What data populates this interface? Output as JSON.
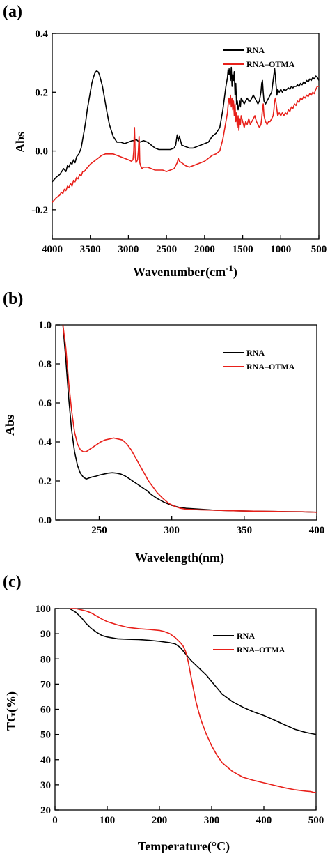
{
  "colors": {
    "rna": "#000000",
    "rna_otma": "#e8201a"
  },
  "chart_data": [
    {
      "panel": "(a)",
      "type": "line",
      "xlabel": "Wavenumber(cm",
      "xlabel_sup": "-1",
      "xlabel_close": ")",
      "ylabel": "Abs",
      "xlim": [
        4000,
        500
      ],
      "ylim": [
        -0.3,
        0.4
      ],
      "xticks": [
        4000,
        3500,
        3000,
        2500,
        2000,
        1500,
        1000,
        500
      ],
      "yticks": [
        -0.2,
        0.0,
        0.2,
        0.4
      ],
      "ytick_labels": [
        "-0.2",
        "0.0",
        "0.2",
        "0.4"
      ],
      "legend_position": "top-right",
      "series": [
        {
          "name": "RNA",
          "color_key": "rna",
          "x": [
            4000,
            3950,
            3900,
            3850,
            3820,
            3800,
            3780,
            3760,
            3740,
            3720,
            3700,
            3680,
            3650,
            3620,
            3600,
            3580,
            3560,
            3540,
            3520,
            3500,
            3480,
            3460,
            3440,
            3420,
            3400,
            3380,
            3360,
            3340,
            3320,
            3300,
            3280,
            3250,
            3200,
            3150,
            3100,
            3050,
            3000,
            2950,
            2920,
            2900,
            2880,
            2850,
            2800,
            2750,
            2700,
            2650,
            2600,
            2550,
            2500,
            2450,
            2400,
            2380,
            2360,
            2345,
            2330,
            2300,
            2250,
            2200,
            2150,
            2100,
            2050,
            2000,
            1950,
            1900,
            1850,
            1800,
            1780,
            1760,
            1740,
            1720,
            1700,
            1690,
            1680,
            1670,
            1660,
            1650,
            1640,
            1630,
            1620,
            1610,
            1600,
            1590,
            1580,
            1570,
            1560,
            1550,
            1540,
            1530,
            1520,
            1500,
            1480,
            1460,
            1440,
            1420,
            1400,
            1380,
            1360,
            1340,
            1320,
            1300,
            1280,
            1260,
            1250,
            1240,
            1230,
            1220,
            1200,
            1180,
            1160,
            1140,
            1120,
            1100,
            1090,
            1080,
            1070,
            1060,
            1050,
            1040,
            1020,
            1000,
            980,
            960,
            940,
            920,
            900,
            880,
            860,
            840,
            820,
            800,
            780,
            760,
            740,
            720,
            700,
            680,
            660,
            640,
            620,
            600,
            580,
            560,
            540,
            520,
            500
          ],
          "y": [
            -0.105,
            -0.09,
            -0.08,
            -0.06,
            -0.07,
            -0.05,
            -0.055,
            -0.04,
            -0.045,
            -0.03,
            -0.04,
            -0.02,
            -0.01,
            0.01,
            0.04,
            0.07,
            0.1,
            0.14,
            0.17,
            0.2,
            0.23,
            0.25,
            0.265,
            0.272,
            0.27,
            0.26,
            0.24,
            0.22,
            0.19,
            0.16,
            0.13,
            0.09,
            0.05,
            0.03,
            0.03,
            0.025,
            0.03,
            0.035,
            0.035,
            0.04,
            0.035,
            0.03,
            0.035,
            0.03,
            0.02,
            0.01,
            0.005,
            0.005,
            0.005,
            0.005,
            0.01,
            0.02,
            0.055,
            0.035,
            0.05,
            0.02,
            0.015,
            0.01,
            0.01,
            0.015,
            0.02,
            0.025,
            0.03,
            0.05,
            0.06,
            0.08,
            0.11,
            0.14,
            0.18,
            0.22,
            0.25,
            0.28,
            0.26,
            0.28,
            0.24,
            0.285,
            0.22,
            0.26,
            0.24,
            0.27,
            0.19,
            0.23,
            0.16,
            0.17,
            0.14,
            0.15,
            0.17,
            0.15,
            0.18,
            0.17,
            0.16,
            0.17,
            0.18,
            0.17,
            0.17,
            0.18,
            0.19,
            0.18,
            0.17,
            0.16,
            0.17,
            0.2,
            0.23,
            0.24,
            0.2,
            0.17,
            0.16,
            0.17,
            0.18,
            0.19,
            0.2,
            0.24,
            0.26,
            0.28,
            0.25,
            0.22,
            0.19,
            0.21,
            0.2,
            0.21,
            0.2,
            0.21,
            0.205,
            0.21,
            0.215,
            0.21,
            0.22,
            0.215,
            0.22,
            0.22,
            0.225,
            0.22,
            0.23,
            0.225,
            0.235,
            0.23,
            0.24,
            0.235,
            0.245,
            0.24,
            0.25,
            0.245,
            0.255,
            0.25,
            0.24
          ]
        },
        {
          "name": "RNA–OTMA",
          "color_key": "rna_otma",
          "x": [
            4000,
            3950,
            3900,
            3880,
            3860,
            3840,
            3820,
            3800,
            3780,
            3760,
            3740,
            3720,
            3700,
            3680,
            3660,
            3640,
            3620,
            3600,
            3580,
            3550,
            3500,
            3450,
            3400,
            3350,
            3300,
            3250,
            3200,
            3150,
            3100,
            3050,
            3000,
            2960,
            2940,
            2930,
            2925,
            2920,
            2915,
            2910,
            2900,
            2880,
            2870,
            2860,
            2855,
            2850,
            2845,
            2840,
            2820,
            2800,
            2750,
            2700,
            2650,
            2600,
            2550,
            2500,
            2450,
            2400,
            2380,
            2360,
            2345,
            2330,
            2300,
            2250,
            2200,
            2150,
            2100,
            2050,
            2000,
            1950,
            1900,
            1850,
            1800,
            1780,
            1760,
            1740,
            1720,
            1700,
            1690,
            1680,
            1670,
            1660,
            1650,
            1640,
            1630,
            1620,
            1610,
            1600,
            1590,
            1580,
            1570,
            1560,
            1550,
            1540,
            1530,
            1520,
            1500,
            1480,
            1460,
            1440,
            1420,
            1400,
            1380,
            1360,
            1340,
            1320,
            1300,
            1280,
            1260,
            1250,
            1240,
            1230,
            1220,
            1200,
            1180,
            1160,
            1140,
            1120,
            1100,
            1090,
            1080,
            1070,
            1060,
            1050,
            1040,
            1020,
            1000,
            980,
            960,
            940,
            920,
            900,
            880,
            860,
            840,
            820,
            800,
            780,
            760,
            740,
            720,
            700,
            680,
            660,
            640,
            620,
            600,
            580,
            560,
            540,
            520,
            500
          ],
          "y": [
            -0.175,
            -0.16,
            -0.15,
            -0.14,
            -0.145,
            -0.13,
            -0.135,
            -0.12,
            -0.125,
            -0.11,
            -0.12,
            -0.1,
            -0.105,
            -0.09,
            -0.095,
            -0.08,
            -0.085,
            -0.07,
            -0.07,
            -0.06,
            -0.045,
            -0.035,
            -0.025,
            -0.015,
            -0.01,
            -0.01,
            -0.01,
            -0.015,
            -0.02,
            -0.025,
            -0.03,
            -0.035,
            -0.03,
            0.0,
            0.04,
            0.08,
            0.04,
            -0.02,
            -0.04,
            -0.03,
            0.0,
            0.05,
            0.02,
            -0.04,
            -0.045,
            -0.05,
            -0.06,
            -0.055,
            -0.055,
            -0.06,
            -0.065,
            -0.065,
            -0.065,
            -0.07,
            -0.065,
            -0.06,
            -0.05,
            -0.04,
            -0.025,
            -0.035,
            -0.04,
            -0.05,
            -0.055,
            -0.05,
            -0.045,
            -0.04,
            -0.035,
            -0.025,
            -0.015,
            -0.01,
            0.0,
            0.02,
            0.04,
            0.07,
            0.1,
            0.13,
            0.16,
            0.18,
            0.16,
            0.19,
            0.15,
            0.18,
            0.14,
            0.17,
            0.12,
            0.16,
            0.1,
            0.13,
            0.08,
            0.12,
            0.07,
            0.11,
            0.09,
            0.12,
            0.1,
            0.08,
            0.1,
            0.09,
            0.11,
            0.09,
            0.1,
            0.11,
            0.12,
            0.1,
            0.09,
            0.08,
            0.09,
            0.11,
            0.14,
            0.16,
            0.12,
            0.1,
            0.09,
            0.1,
            0.1,
            0.11,
            0.12,
            0.14,
            0.17,
            0.18,
            0.16,
            0.14,
            0.12,
            0.13,
            0.12,
            0.13,
            0.12,
            0.13,
            0.125,
            0.14,
            0.135,
            0.15,
            0.145,
            0.16,
            0.155,
            0.17,
            0.165,
            0.18,
            0.175,
            0.185,
            0.18,
            0.19,
            0.185,
            0.195,
            0.19,
            0.2,
            0.195,
            0.21,
            0.22,
            0.22
          ]
        }
      ]
    },
    {
      "panel": "(b)",
      "type": "line",
      "xlabel": "Wavelength(nm)",
      "ylabel": "Abs",
      "xlim": [
        220,
        400
      ],
      "ylim": [
        0.0,
        1.0
      ],
      "xticks": [
        250,
        300,
        350,
        400
      ],
      "yticks": [
        0.0,
        0.2,
        0.4,
        0.6,
        0.8,
        1.0
      ],
      "ytick_labels": [
        "0.0",
        "0.2",
        "0.4",
        "0.6",
        "0.8",
        "1.0"
      ],
      "legend_position": "top-right",
      "series": [
        {
          "name": "RNA",
          "color_key": "rna",
          "x": [
            225,
            227,
            229,
            231,
            233,
            235,
            237,
            239,
            241,
            243,
            245,
            248,
            250,
            253,
            256,
            259,
            262,
            265,
            268,
            271,
            274,
            277,
            280,
            283,
            286,
            290,
            295,
            300,
            305,
            310,
            320,
            330,
            340,
            350,
            360,
            370,
            380,
            390,
            400
          ],
          "y": [
            1.0,
            0.82,
            0.62,
            0.46,
            0.35,
            0.28,
            0.24,
            0.22,
            0.21,
            0.215,
            0.22,
            0.225,
            0.23,
            0.235,
            0.24,
            0.242,
            0.24,
            0.235,
            0.225,
            0.21,
            0.195,
            0.18,
            0.165,
            0.15,
            0.13,
            0.11,
            0.09,
            0.075,
            0.065,
            0.06,
            0.055,
            0.05,
            0.048,
            0.046,
            0.045,
            0.044,
            0.043,
            0.042,
            0.04
          ]
        },
        {
          "name": "RNA–OTMA",
          "color_key": "rna_otma",
          "x": [
            225,
            227,
            229,
            231,
            233,
            235,
            237,
            239,
            241,
            243,
            245,
            248,
            251,
            254,
            257,
            260,
            263,
            266,
            269,
            272,
            275,
            278,
            281,
            284,
            287,
            290,
            294,
            298,
            302,
            306,
            310,
            320,
            330,
            340,
            350,
            360,
            370,
            380,
            390,
            400
          ],
          "y": [
            1.0,
            0.88,
            0.7,
            0.56,
            0.45,
            0.39,
            0.36,
            0.35,
            0.35,
            0.36,
            0.37,
            0.385,
            0.4,
            0.41,
            0.415,
            0.42,
            0.415,
            0.41,
            0.39,
            0.36,
            0.32,
            0.28,
            0.24,
            0.2,
            0.17,
            0.14,
            0.11,
            0.085,
            0.07,
            0.06,
            0.055,
            0.052,
            0.05,
            0.048,
            0.046,
            0.045,
            0.044,
            0.043,
            0.042,
            0.04
          ]
        }
      ]
    },
    {
      "panel": "(c)",
      "type": "line",
      "xlabel": "Temperature(°C)",
      "ylabel": "TG(%)",
      "xlim": [
        0,
        500
      ],
      "ylim": [
        20,
        100
      ],
      "xticks": [
        0,
        100,
        200,
        300,
        400,
        500
      ],
      "yticks": [
        20,
        30,
        40,
        50,
        60,
        70,
        80,
        90,
        100
      ],
      "ytick_labels": [
        "20",
        "30",
        "40",
        "50",
        "60",
        "70",
        "80",
        "90",
        "100"
      ],
      "legend_position": "top-right",
      "series": [
        {
          "name": "RNA",
          "color_key": "rna",
          "x": [
            28,
            40,
            50,
            60,
            70,
            80,
            90,
            100,
            120,
            140,
            160,
            180,
            200,
            220,
            230,
            240,
            250,
            260,
            270,
            280,
            290,
            300,
            310,
            320,
            340,
            360,
            380,
            400,
            420,
            440,
            460,
            480,
            500
          ],
          "y": [
            100,
            98.5,
            96.5,
            94,
            92,
            90.5,
            89.3,
            88.7,
            88,
            87.8,
            87.7,
            87.4,
            87,
            86.4,
            86,
            84.5,
            82,
            79.5,
            77.5,
            75.5,
            73.5,
            71,
            68.5,
            66,
            63,
            60.8,
            59,
            57.5,
            55.7,
            53.8,
            52,
            50.8,
            50
          ]
        },
        {
          "name": "RNA–OTMA",
          "color_key": "rna_otma",
          "x": [
            28,
            40,
            50,
            60,
            70,
            80,
            90,
            100,
            120,
            140,
            160,
            180,
            200,
            210,
            220,
            230,
            240,
            245,
            250,
            255,
            260,
            265,
            270,
            275,
            280,
            290,
            300,
            310,
            320,
            340,
            360,
            380,
            400,
            420,
            440,
            460,
            480,
            490,
            495,
            500
          ],
          "y": [
            100,
            100,
            99.5,
            99,
            98.2,
            97,
            95.8,
            94.8,
            93.5,
            92.5,
            92,
            91.7,
            91.3,
            90.8,
            90,
            88.5,
            86.5,
            85.2,
            83,
            79,
            73.5,
            68,
            63,
            59,
            55.5,
            50,
            45.5,
            41.8,
            38.8,
            35.3,
            33,
            31.8,
            30.8,
            29.8,
            28.8,
            28,
            27.5,
            27.3,
            27,
            26.9
          ]
        }
      ]
    }
  ]
}
